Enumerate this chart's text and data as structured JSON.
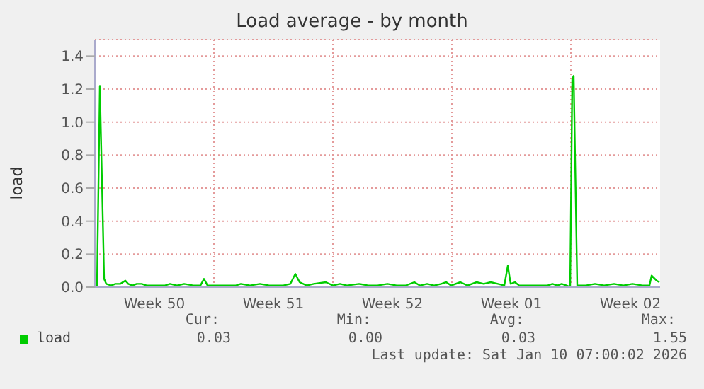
{
  "chart_data": {
    "type": "line",
    "title": "Load average - by month",
    "ylabel": "load",
    "x": [
      "2025-12-08T00:00",
      "2025-12-08T03:00",
      "2025-12-08T07:00",
      "2025-12-08T13:00",
      "2025-12-08T16:00",
      "2025-12-08T23:00",
      "2025-12-09T05:00",
      "2025-12-09T12:00",
      "2025-12-09T19:00",
      "2025-12-09T23:00",
      "2025-12-10T05:00",
      "2025-12-10T11:00",
      "2025-12-10T18:00",
      "2025-12-11T01:00",
      "2025-12-11T14:00",
      "2025-12-12T03:00",
      "2025-12-12T10:00",
      "2025-12-12T20:00",
      "2025-12-13T06:00",
      "2025-12-13T19:00",
      "2025-12-14T05:00",
      "2025-12-14T10:00",
      "2025-12-14T15:00",
      "2025-12-15T05:00",
      "2025-12-15T18:00",
      "2025-12-16T07:00",
      "2025-12-16T14:00",
      "2025-12-17T03:00",
      "2025-12-17T17:00",
      "2025-12-18T06:00",
      "2025-12-19T02:00",
      "2025-12-19T12:00",
      "2025-12-19T19:00",
      "2025-12-20T01:00",
      "2025-12-20T11:00",
      "2025-12-20T21:00",
      "2025-12-21T14:00",
      "2025-12-22T00:00",
      "2025-12-22T10:00",
      "2025-12-22T20:00",
      "2025-12-23T13:00",
      "2025-12-24T02:00",
      "2025-12-24T15:00",
      "2025-12-25T05:00",
      "2025-12-25T18:00",
      "2025-12-26T07:00",
      "2025-12-26T19:00",
      "2025-12-27T03:00",
      "2025-12-27T13:00",
      "2025-12-27T23:00",
      "2025-12-28T09:00",
      "2025-12-28T16:00",
      "2025-12-28T23:00",
      "2025-12-29T12:00",
      "2025-12-29T22:00",
      "2025-12-30T11:00",
      "2025-12-30T21:00",
      "2025-12-31T07:00",
      "2025-12-31T17:00",
      "2026-01-01T02:00",
      "2026-01-01T07:00",
      "2026-01-01T11:00",
      "2026-01-01T17:00",
      "2026-01-01T23:00",
      "2026-01-02T13:00",
      "2026-01-03T02:00",
      "2026-01-03T15:00",
      "2026-01-03T22:00",
      "2026-01-04T05:00",
      "2026-01-04T11:00",
      "2026-01-04T18:00",
      "2026-01-04T23:00",
      "2026-01-05T02:00",
      "2026-01-05T04:00",
      "2026-01-05T09:00",
      "2026-01-05T21:00",
      "2026-01-06T10:00",
      "2026-01-06T23:00",
      "2026-01-07T13:00",
      "2026-01-08T02:00",
      "2026-01-08T15:00",
      "2026-01-09T05:00",
      "2026-01-09T15:00",
      "2026-01-09T18:00",
      "2026-01-10T01:00",
      "2026-01-10T05:00"
    ],
    "series": [
      {
        "name": "load",
        "color": "#00cc00",
        "values": [
          0.0,
          0.01,
          1.22,
          0.05,
          0.02,
          0.01,
          0.02,
          0.02,
          0.04,
          0.02,
          0.01,
          0.02,
          0.02,
          0.01,
          0.01,
          0.01,
          0.02,
          0.01,
          0.02,
          0.01,
          0.01,
          0.05,
          0.01,
          0.01,
          0.01,
          0.01,
          0.02,
          0.01,
          0.02,
          0.01,
          0.01,
          0.02,
          0.08,
          0.03,
          0.01,
          0.02,
          0.03,
          0.01,
          0.02,
          0.01,
          0.02,
          0.01,
          0.01,
          0.02,
          0.01,
          0.01,
          0.03,
          0.01,
          0.02,
          0.01,
          0.02,
          0.03,
          0.01,
          0.03,
          0.01,
          0.03,
          0.02,
          0.03,
          0.02,
          0.01,
          0.13,
          0.02,
          0.03,
          0.01,
          0.01,
          0.01,
          0.01,
          0.02,
          0.01,
          0.02,
          0.01,
          0.0,
          1.26,
          1.28,
          0.01,
          0.01,
          0.02,
          0.01,
          0.02,
          0.01,
          0.02,
          0.01,
          0.01,
          0.07,
          0.04,
          0.03
        ]
      }
    ],
    "xlim": [
      "2025-12-08T00:00",
      "2026-01-10T06:00"
    ],
    "xticks": [
      {
        "value": "2025-12-11T12:00",
        "label": "Week 50"
      },
      {
        "value": "2025-12-18T12:00",
        "label": "Week 51"
      },
      {
        "value": "2025-12-25T12:00",
        "label": "Week 52"
      },
      {
        "value": "2026-01-01T12:00",
        "label": "Week 01"
      },
      {
        "value": "2026-01-08T12:00",
        "label": "Week 02"
      },
      {
        "value": "2025-12-15T00:00",
        "label": null
      },
      {
        "value": "2025-12-22T00:00",
        "label": null
      },
      {
        "value": "2025-12-29T00:00",
        "label": null
      },
      {
        "value": "2026-01-05T00:00",
        "label": null
      }
    ],
    "ylim": [
      0,
      1.5
    ],
    "yticks": [
      {
        "value": 0,
        "label": "0.0"
      },
      0.2,
      0.4,
      0.6,
      0.8,
      {
        "value": 1,
        "label": "1.0"
      },
      1.2,
      1.4
    ],
    "grid": true,
    "legend": "bottom left",
    "marker": "none",
    "line_style": "solid",
    "annotations": [
      "Cur:",
      "0.03",
      "Min:",
      "0.00",
      "Avg:",
      "0.03",
      "Max:",
      "1.55",
      "Last update: Sat Jan 10 07:00:02 2026"
    ]
  }
}
